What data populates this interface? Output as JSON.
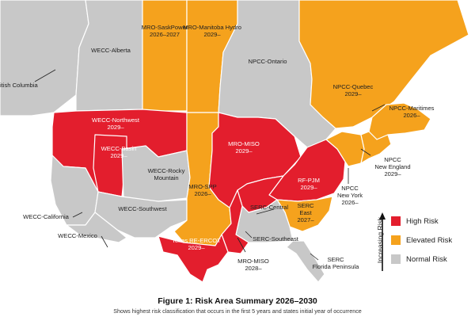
{
  "colors": {
    "high": "#e31e2d",
    "elevated": "#f5a21d",
    "normal": "#c8c8c8",
    "background": "#ffffff"
  },
  "regions": [
    {
      "id": "wecc-alberta",
      "lines": [
        "WECC-Alberta"
      ],
      "risk": "normal"
    },
    {
      "id": "mro-saskpower",
      "lines": [
        "MRO-SaskPower",
        "2026–2027"
      ],
      "risk": "elevated"
    },
    {
      "id": "mro-manitoba",
      "lines": [
        "MRO-Manitoba Hydro",
        "2029–"
      ],
      "risk": "elevated"
    },
    {
      "id": "npcc-ontario",
      "lines": [
        "NPCC-Ontario"
      ],
      "risk": "normal"
    },
    {
      "id": "npcc-quebec",
      "lines": [
        "NPCC-Quebec",
        "2029–"
      ],
      "risk": "elevated"
    },
    {
      "id": "npcc-maritimes",
      "lines": [
        "NPCC-Maritimes",
        "2026–"
      ],
      "risk": "elevated"
    },
    {
      "id": "wecc-bc",
      "lines": [
        "itish Columbia"
      ],
      "risk": "normal"
    },
    {
      "id": "wecc-northwest",
      "lines": [
        "WECC-Northwest",
        "2029–"
      ],
      "risk": "high"
    },
    {
      "id": "wecc-basin",
      "lines": [
        "WECC-Basin",
        "2029–"
      ],
      "risk": "high"
    },
    {
      "id": "mro-miso",
      "lines": [
        "MRO-MISO",
        "2029–"
      ],
      "risk": "high"
    },
    {
      "id": "wecc-rocky",
      "lines": [
        "WECC-Rocky",
        "Mountain"
      ],
      "risk": "normal"
    },
    {
      "id": "mro-spp",
      "lines": [
        "MRO-SPP",
        "2026–"
      ],
      "risk": "elevated"
    },
    {
      "id": "rf-pjm",
      "lines": [
        "RF-PJM",
        "2029–"
      ],
      "risk": "high"
    },
    {
      "id": "npcc-new-england",
      "lines": [
        "NPCC",
        "New England",
        "2029–"
      ],
      "risk": "elevated"
    },
    {
      "id": "npcc-new-york",
      "lines": [
        "NPCC",
        "New York",
        "2026–"
      ],
      "risk": "elevated"
    },
    {
      "id": "wecc-california",
      "lines": [
        "WECC-California"
      ],
      "risk": "normal"
    },
    {
      "id": "wecc-southwest",
      "lines": [
        "WECC-Southwest"
      ],
      "risk": "normal"
    },
    {
      "id": "serc-central",
      "lines": [
        "SERC-Central"
      ],
      "risk": "high"
    },
    {
      "id": "serc-east",
      "lines": [
        "SERC",
        "East",
        "2027–"
      ],
      "risk": "elevated"
    },
    {
      "id": "wecc-mexico",
      "lines": [
        "WECC-Mexico"
      ],
      "risk": "normal"
    },
    {
      "id": "texas-ercot",
      "lines": [
        "Texas RE-ERCOT",
        "2029–"
      ],
      "risk": "high"
    },
    {
      "id": "serc-southeast",
      "lines": [
        "SERC-Southeast"
      ],
      "risk": "normal"
    },
    {
      "id": "serc-florida",
      "lines": [
        "SERC",
        "Florida Peninsula"
      ],
      "risk": "normal"
    },
    {
      "id": "mro-miso-south",
      "lines": [
        "MRO-MISO",
        "2028–"
      ],
      "risk": "high"
    }
  ],
  "legend": {
    "axis_label": "Increasing Risk",
    "items": [
      {
        "label": "High Risk",
        "risk": "high"
      },
      {
        "label": "Elevated Risk",
        "risk": "elevated"
      },
      {
        "label": "Normal Risk",
        "risk": "normal"
      }
    ]
  },
  "caption": {
    "title": "Figure 1: Risk Area Summary 2026–2030",
    "subtitle": "Shows highest risk classification that occurs in the first 5 years and states initial year of occurrence"
  }
}
